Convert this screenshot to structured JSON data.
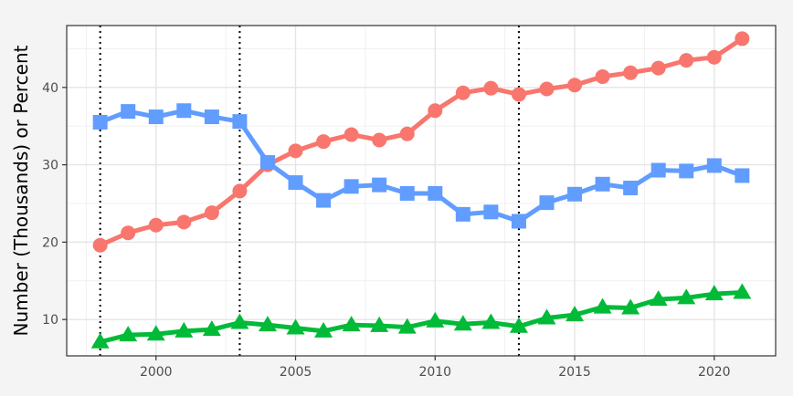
{
  "chart_data": {
    "type": "line",
    "title": "",
    "xlabel": "",
    "ylabel": "Number (Thousands) or Percent",
    "xlim": [
      1996.8,
      2022.2
    ],
    "ylim": [
      5.3,
      48.0
    ],
    "x_ticks": [
      2000,
      2005,
      2010,
      2015,
      2020
    ],
    "y_ticks": [
      10,
      20,
      30,
      40
    ],
    "grid": true,
    "legend": "none",
    "vertical_reference_lines": [
      1998,
      2003,
      2013
    ],
    "x": [
      1998,
      1999,
      2000,
      2001,
      2002,
      2003,
      2004,
      2005,
      2006,
      2007,
      2008,
      2009,
      2010,
      2011,
      2012,
      2013,
      2014,
      2015,
      2016,
      2017,
      2018,
      2019,
      2020,
      2021
    ],
    "series": [
      {
        "color": "#F8766D",
        "marker": "circle",
        "values": [
          19.6,
          21.2,
          22.2,
          22.6,
          23.8,
          26.6,
          30.0,
          31.8,
          33.0,
          33.9,
          33.2,
          34.0,
          37.0,
          39.3,
          39.9,
          39.1,
          39.8,
          40.3,
          41.4,
          41.9,
          42.5,
          43.5,
          43.9,
          46.3
        ]
      },
      {
        "color": "#619CFF",
        "marker": "square",
        "values": [
          35.5,
          36.9,
          36.2,
          37.0,
          36.2,
          35.6,
          30.3,
          27.7,
          25.4,
          27.2,
          27.4,
          26.3,
          26.3,
          23.6,
          23.9,
          22.7,
          25.1,
          26.2,
          27.5,
          27.0,
          29.3,
          29.2,
          29.9,
          28.6
        ]
      },
      {
        "color": "#00BA38",
        "marker": "triangle",
        "values": [
          7.1,
          8.0,
          8.1,
          8.5,
          8.7,
          9.6,
          9.3,
          8.9,
          8.5,
          9.3,
          9.2,
          9.0,
          9.8,
          9.4,
          9.6,
          9.1,
          10.2,
          10.6,
          11.6,
          11.5,
          12.6,
          12.8,
          13.3,
          13.5
        ]
      }
    ]
  }
}
